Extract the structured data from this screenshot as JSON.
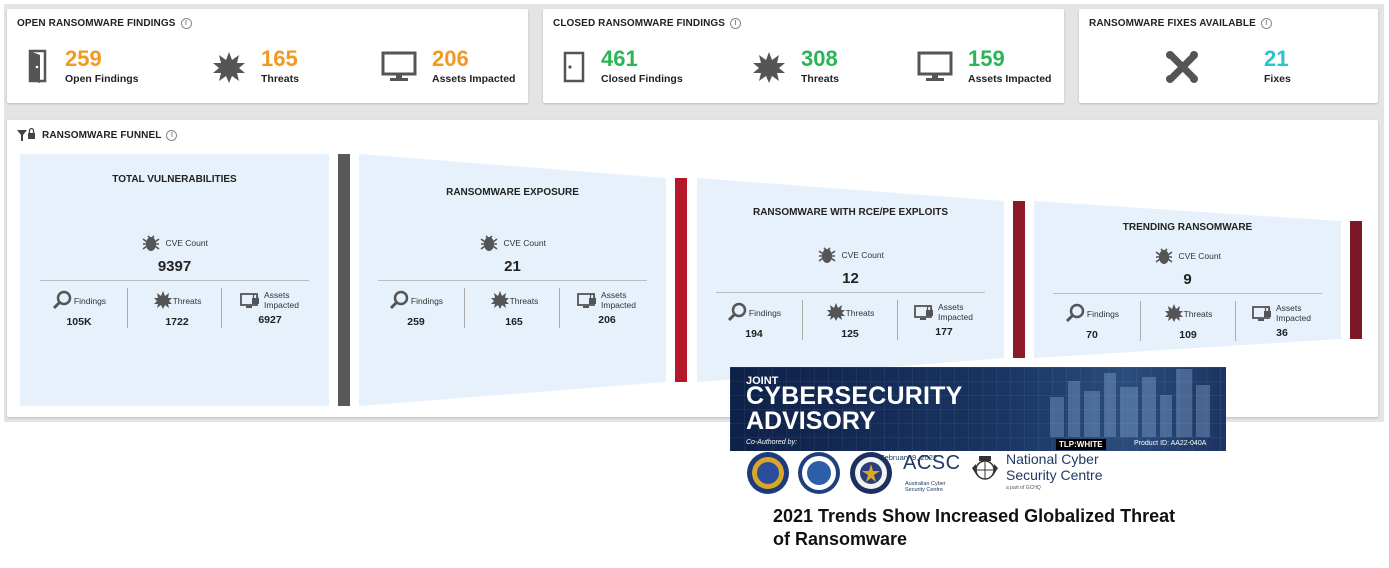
{
  "open_card": {
    "title": "OPEN RANSOMWARE FINDINGS",
    "stats": [
      {
        "value": "259",
        "label": "Open Findings",
        "icon": "door-open-icon"
      },
      {
        "value": "165",
        "label": "Threats",
        "icon": "threat-burst-icon"
      },
      {
        "value": "206",
        "label": "Assets Impacted",
        "icon": "monitor-icon"
      }
    ]
  },
  "closed_card": {
    "title": "CLOSED RANSOMWARE FINDINGS",
    "stats": [
      {
        "value": "461",
        "label": "Closed Findings",
        "icon": "door-closed-icon"
      },
      {
        "value": "308",
        "label": "Threats",
        "icon": "threat-burst-icon"
      },
      {
        "value": "159",
        "label": "Assets Impacted",
        "icon": "monitor-icon"
      }
    ]
  },
  "fixes_card": {
    "title": "RANSOMWARE FIXES AVAILABLE",
    "stats": [
      {
        "value": "21",
        "label": "Fixes",
        "icon": "wrench-cross-icon"
      }
    ]
  },
  "funnel": {
    "title": "RANSOMWARE FUNNEL",
    "stages": [
      {
        "title": "TOTAL VULNERABILITIES",
        "cve_label": "CVE Count",
        "cve_value": "9397",
        "findings_label": "Findings",
        "findings": "105K",
        "threats_label": "Threats",
        "threats": "1722",
        "assets_label": "Assets Impacted",
        "assets": "6927",
        "bar_color": "#595959"
      },
      {
        "title": "RANSOMWARE EXPOSURE",
        "cve_label": "CVE Count",
        "cve_value": "21",
        "findings_label": "Findings",
        "findings": "259",
        "threats_label": "Threats",
        "threats": "165",
        "assets_label": "Assets Impacted",
        "assets": "206",
        "bar_color": "#b5182b"
      },
      {
        "title": "RANSOMWARE WITH RCE/PE EXPLOITS",
        "cve_label": "CVE Count",
        "cve_value": "12",
        "findings_label": "Findings",
        "findings": "194",
        "threats_label": "Threats",
        "threats": "125",
        "assets_label": "Assets Impacted",
        "assets": "177",
        "bar_color": "#8c1a28"
      },
      {
        "title": "TRENDING RANSOMWARE",
        "cve_label": "CVE Count",
        "cve_value": "9",
        "findings_label": "Findings",
        "findings": "70",
        "threats_label": "Threats",
        "threats": "109",
        "assets_label": "Assets Impacted",
        "assets": "36",
        "bar_color": "#7a1725"
      }
    ]
  },
  "advisory": {
    "kicker": "JOINT",
    "title_line1": "CYBERSECURITY",
    "title_line2": "ADVISORY",
    "coauthored": "Co-Authored by:",
    "tlp": "TLP:WHITE",
    "product_id": "Product ID: AA22-040A",
    "date": "February 9, 2022",
    "acsc": "ACSC",
    "acsc_sub": "Australian Cyber Security Centre",
    "ncsc_line1": "National Cyber",
    "ncsc_line2": "Security Centre",
    "ncsc_sub": "a part of GCHQ",
    "headline_line1": "2021 Trends Show Increased Globalized Threat",
    "headline_line2": "of Ransomware"
  },
  "colors": {
    "orange": "#f39821",
    "green": "#2cb556",
    "teal": "#29c4cc",
    "funnel_fill": "#e6f1fc",
    "funnel_gray_bar": "#595959",
    "funnel_red_bar": "#b5182b"
  }
}
